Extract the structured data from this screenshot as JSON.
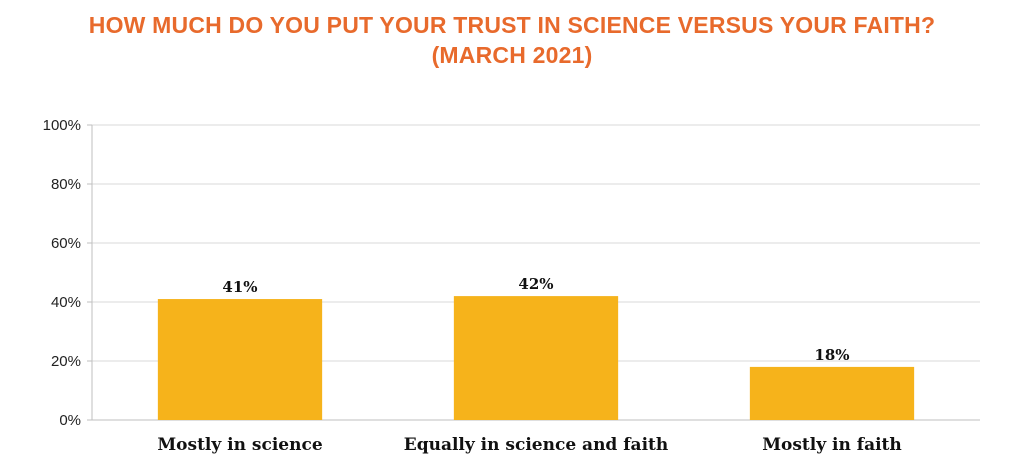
{
  "chart_data": {
    "type": "bar",
    "title": [
      "HOW MUCH DO YOU PUT YOUR TRUST IN SCIENCE VERSUS YOUR FAITH?",
      "(MARCH 2021)"
    ],
    "categories": [
      "Mostly in science",
      "Equally in science and faith",
      "Mostly in faith"
    ],
    "values": [
      41,
      42,
      18
    ],
    "data_labels": [
      "41%",
      "42%",
      "18%"
    ],
    "ylim": [
      0,
      100
    ],
    "yticks": [
      0,
      20,
      40,
      60,
      80,
      100
    ],
    "ytick_labels": [
      "0%",
      "20%",
      "40%",
      "60%",
      "80%",
      "100%"
    ],
    "xlabel": "",
    "ylabel": "",
    "grid": true,
    "legend": "none",
    "bar_color": "#F6B31B",
    "title_color": "#E86A2C"
  }
}
